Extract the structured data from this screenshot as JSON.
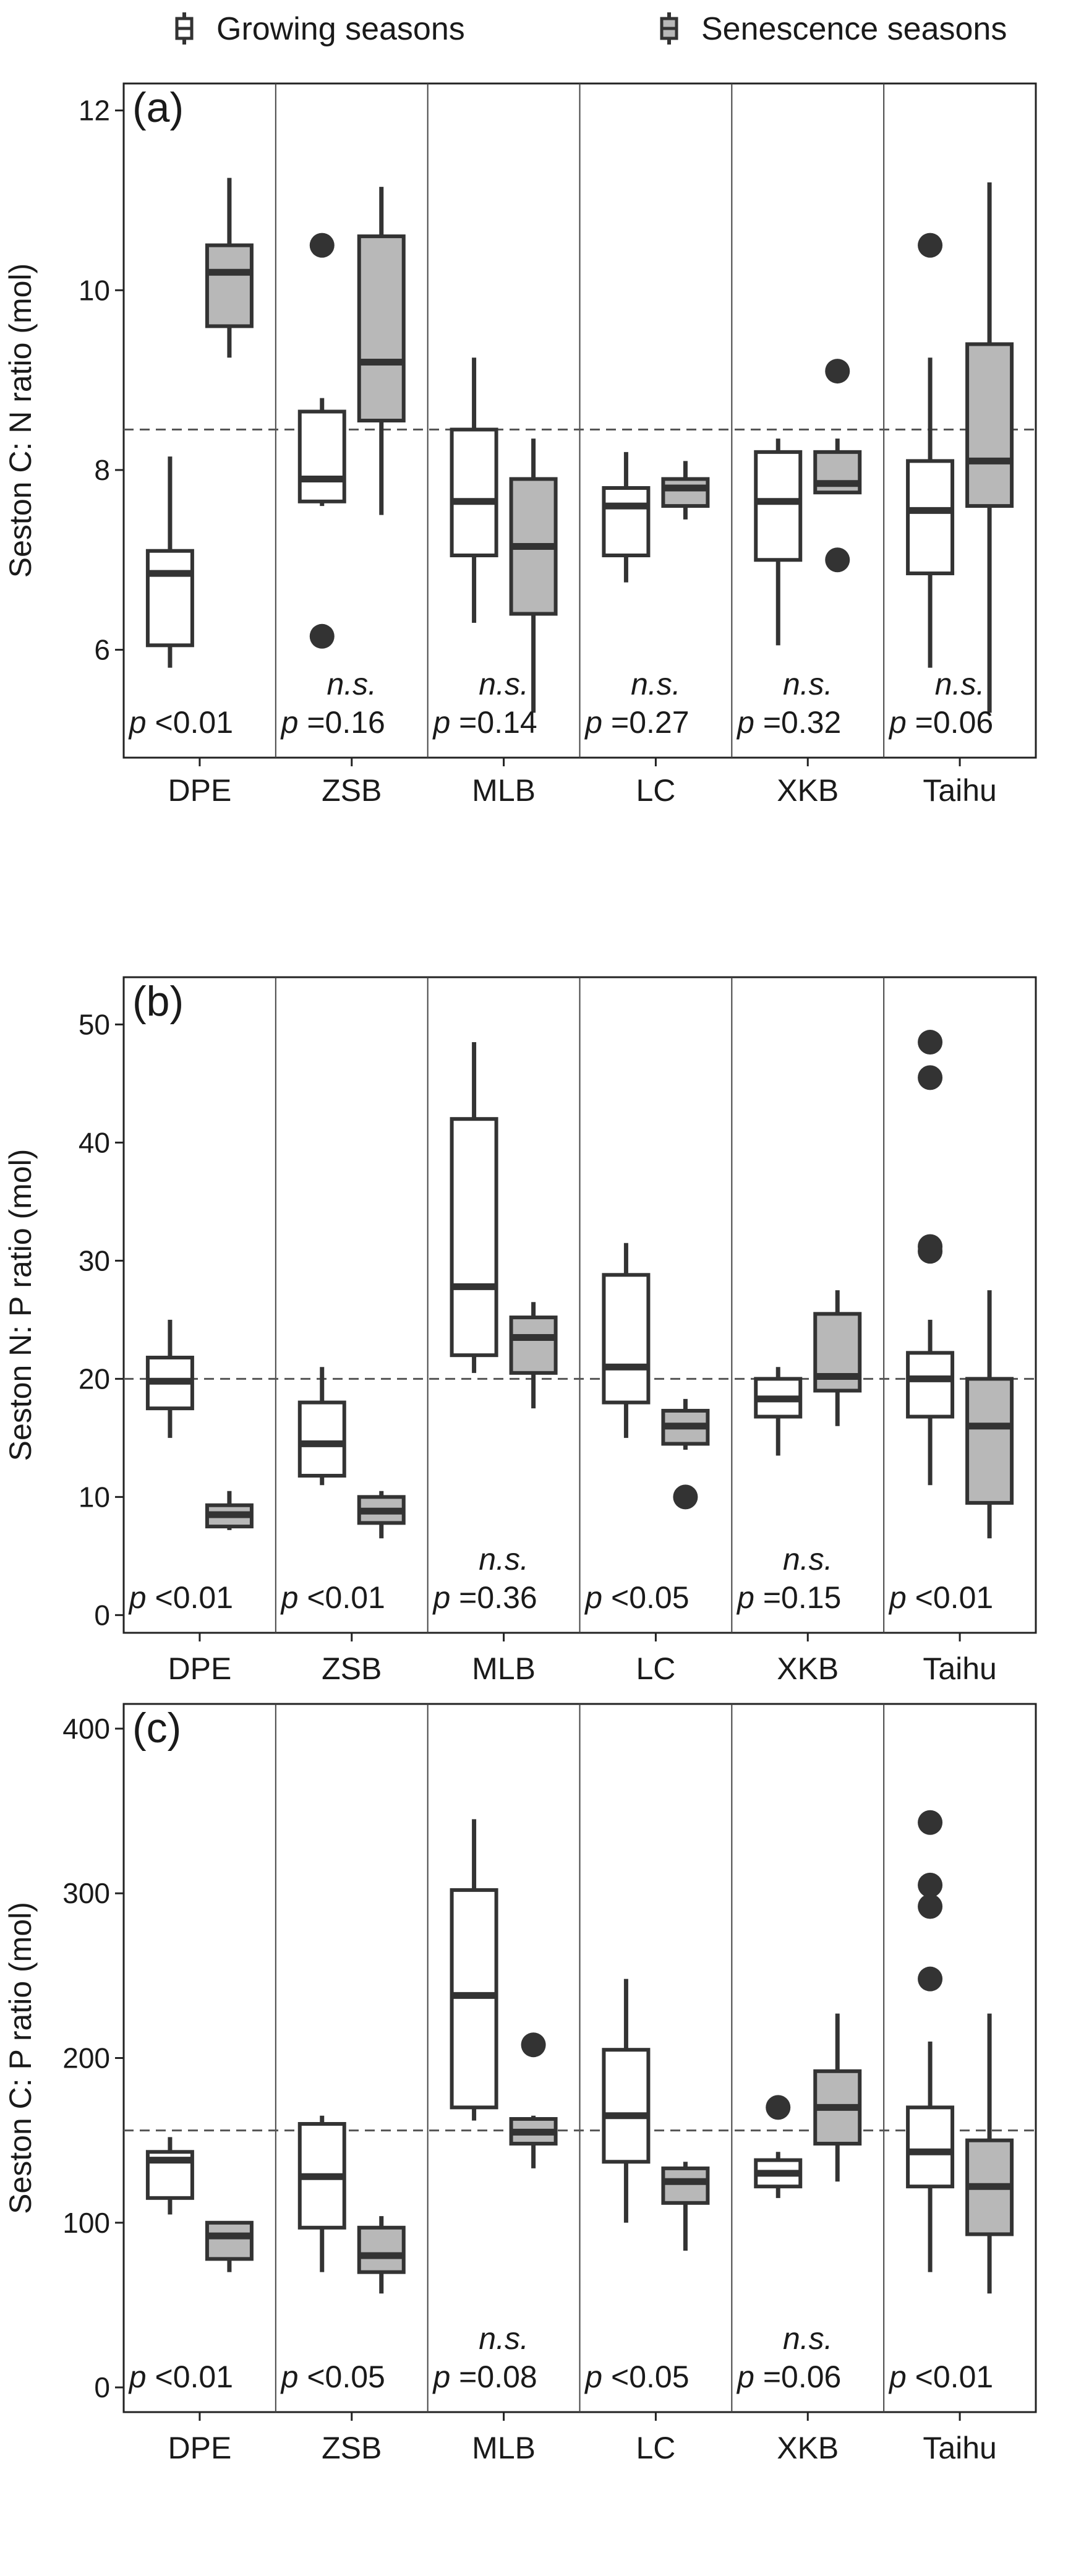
{
  "legend": {
    "growing": "Growing seasons",
    "senescence": "Senescence seasons"
  },
  "colors": {
    "growing_fill": "#ffffff",
    "senescence_fill": "#b8b8b8",
    "stroke": "#333333",
    "reference_line": "#555555"
  },
  "chart_data": [
    {
      "type": "boxplot",
      "panel": "(a)",
      "ylabel": "Seston C: N ratio (mol)",
      "ylim": [
        4.8,
        12.3
      ],
      "yticks": [
        6,
        8,
        10,
        12
      ],
      "reference_line": 8.45,
      "categories": [
        "DPE",
        "ZSB",
        "MLB",
        "LC",
        "XKB",
        "Taihu"
      ],
      "series": [
        {
          "name": "Growing seasons",
          "boxes": [
            {
              "min": 5.8,
              "q1": 6.05,
              "median": 6.85,
              "q3": 7.1,
              "max": 8.15,
              "outliers": []
            },
            {
              "min": 7.6,
              "q1": 7.65,
              "median": 7.9,
              "q3": 8.65,
              "max": 8.8,
              "outliers": [
                10.5,
                6.15
              ]
            },
            {
              "min": 6.3,
              "q1": 7.05,
              "median": 7.65,
              "q3": 8.45,
              "max": 9.25,
              "outliers": []
            },
            {
              "min": 6.75,
              "q1": 7.05,
              "median": 7.6,
              "q3": 7.8,
              "max": 8.2,
              "outliers": []
            },
            {
              "min": 6.05,
              "q1": 7.0,
              "median": 7.65,
              "q3": 8.2,
              "max": 8.35,
              "outliers": []
            },
            {
              "min": 5.8,
              "q1": 6.85,
              "median": 7.55,
              "q3": 8.1,
              "max": 9.25,
              "outliers": [
                10.5
              ]
            }
          ]
        },
        {
          "name": "Senescence seasons",
          "boxes": [
            {
              "min": 9.25,
              "q1": 9.6,
              "median": 10.2,
              "q3": 10.5,
              "max": 11.25,
              "outliers": []
            },
            {
              "min": 7.5,
              "q1": 8.55,
              "median": 9.2,
              "q3": 10.6,
              "max": 11.15,
              "outliers": []
            },
            {
              "min": 5.3,
              "q1": 6.4,
              "median": 7.15,
              "q3": 7.9,
              "max": 8.35,
              "outliers": []
            },
            {
              "min": 7.45,
              "q1": 7.6,
              "median": 7.8,
              "q3": 7.9,
              "max": 8.1,
              "outliers": []
            },
            {
              "min": 7.75,
              "q1": 7.75,
              "median": 7.85,
              "q3": 8.2,
              "max": 8.35,
              "outliers": [
                9.1,
                7.0
              ]
            },
            {
              "min": 5.3,
              "q1": 7.6,
              "median": 8.1,
              "q3": 9.4,
              "max": 11.2,
              "outliers": []
            }
          ]
        }
      ],
      "stats": [
        {
          "ns": "",
          "p": "<0.01"
        },
        {
          "ns": "n.s.",
          "p": "=0.16"
        },
        {
          "ns": "n.s.",
          "p": "=0.14"
        },
        {
          "ns": "n.s.",
          "p": "=0.27"
        },
        {
          "ns": "n.s.",
          "p": "=0.32"
        },
        {
          "ns": "n.s.",
          "p": "=0.06"
        }
      ]
    },
    {
      "type": "boxplot",
      "panel": "(b)",
      "ylabel": "Seston N: P ratio (mol)",
      "ylim": [
        -1.5,
        54
      ],
      "yticks": [
        0,
        10,
        20,
        30,
        40,
        50
      ],
      "reference_line": 20,
      "categories": [
        "DPE",
        "ZSB",
        "MLB",
        "LC",
        "XKB",
        "Taihu"
      ],
      "series": [
        {
          "name": "Growing seasons",
          "boxes": [
            {
              "min": 15,
              "q1": 17.5,
              "median": 19.8,
              "q3": 21.8,
              "max": 25,
              "outliers": []
            },
            {
              "min": 11,
              "q1": 11.8,
              "median": 14.5,
              "q3": 18,
              "max": 21,
              "outliers": []
            },
            {
              "min": 20.5,
              "q1": 22,
              "median": 27.8,
              "q3": 42,
              "max": 48.5,
              "outliers": []
            },
            {
              "min": 15,
              "q1": 18,
              "median": 21,
              "q3": 28.8,
              "max": 31.5,
              "outliers": []
            },
            {
              "min": 13.5,
              "q1": 16.8,
              "median": 18.3,
              "q3": 20,
              "max": 21,
              "outliers": []
            },
            {
              "min": 11,
              "q1": 16.8,
              "median": 20,
              "q3": 22.2,
              "max": 25,
              "outliers": [
                48.5,
                45.5,
                31.2,
                30.8
              ]
            }
          ]
        },
        {
          "name": "Senescence seasons",
          "boxes": [
            {
              "min": 7.2,
              "q1": 7.5,
              "median": 8.5,
              "q3": 9.3,
              "max": 10.5,
              "outliers": []
            },
            {
              "min": 6.5,
              "q1": 7.8,
              "median": 8.8,
              "q3": 10,
              "max": 10.5,
              "outliers": []
            },
            {
              "min": 17.5,
              "q1": 20.5,
              "median": 23.5,
              "q3": 25.2,
              "max": 26.5,
              "outliers": []
            },
            {
              "min": 14,
              "q1": 14.5,
              "median": 16,
              "q3": 17.3,
              "max": 18.3,
              "outliers": [
                10
              ]
            },
            {
              "min": 16,
              "q1": 19,
              "median": 20.2,
              "q3": 25.5,
              "max": 27.5,
              "outliers": []
            },
            {
              "min": 6.5,
              "q1": 9.5,
              "median": 16,
              "q3": 20,
              "max": 27.5,
              "outliers": []
            }
          ]
        }
      ],
      "stats": [
        {
          "ns": "",
          "p": "<0.01"
        },
        {
          "ns": "",
          "p": "<0.01"
        },
        {
          "ns": "n.s.",
          "p": "=0.36"
        },
        {
          "ns": "",
          "p": "<0.05"
        },
        {
          "ns": "n.s.",
          "p": "=0.15"
        },
        {
          "ns": "",
          "p": "<0.01"
        }
      ]
    },
    {
      "type": "boxplot",
      "panel": "(c)",
      "ylabel": "Seston C: P ratio (mol)",
      "ylim": [
        -15,
        415
      ],
      "yticks": [
        0,
        100,
        200,
        300,
        400
      ],
      "reference_line": 156,
      "categories": [
        "DPE",
        "ZSB",
        "MLB",
        "LC",
        "XKB",
        "Taihu"
      ],
      "series": [
        {
          "name": "Growing seasons",
          "boxes": [
            {
              "min": 105,
              "q1": 115,
              "median": 138,
              "q3": 143,
              "max": 152,
              "outliers": []
            },
            {
              "min": 70,
              "q1": 97,
              "median": 128,
              "q3": 160,
              "max": 165,
              "outliers": []
            },
            {
              "min": 162,
              "q1": 170,
              "median": 238,
              "q3": 302,
              "max": 345,
              "outliers": []
            },
            {
              "min": 100,
              "q1": 137,
              "median": 165,
              "q3": 205,
              "max": 248,
              "outliers": []
            },
            {
              "min": 115,
              "q1": 122,
              "median": 130,
              "q3": 138,
              "max": 143,
              "outliers": [
                170
              ]
            },
            {
              "min": 70,
              "q1": 122,
              "median": 143,
              "q3": 170,
              "max": 210,
              "outliers": [
                343,
                305,
                292,
                248
              ]
            }
          ]
        },
        {
          "name": "Senescence seasons",
          "boxes": [
            {
              "min": 70,
              "q1": 78,
              "median": 92,
              "q3": 100,
              "max": 100,
              "outliers": []
            },
            {
              "min": 57,
              "q1": 70,
              "median": 80,
              "q3": 97,
              "max": 104,
              "outliers": []
            },
            {
              "min": 133,
              "q1": 148,
              "median": 155,
              "q3": 163,
              "max": 165,
              "outliers": [
                208
              ]
            },
            {
              "min": 83,
              "q1": 112,
              "median": 125,
              "q3": 133,
              "max": 137,
              "outliers": []
            },
            {
              "min": 125,
              "q1": 148,
              "median": 170,
              "q3": 192,
              "max": 227,
              "outliers": []
            },
            {
              "min": 57,
              "q1": 93,
              "median": 122,
              "q3": 150,
              "max": 227,
              "outliers": []
            }
          ]
        }
      ],
      "stats": [
        {
          "ns": "",
          "p": "<0.01"
        },
        {
          "ns": "",
          "p": "<0.05"
        },
        {
          "ns": "n.s.",
          "p": "=0.08"
        },
        {
          "ns": "",
          "p": "<0.05"
        },
        {
          "ns": "n.s.",
          "p": "=0.06"
        },
        {
          "ns": "",
          "p": "<0.01"
        }
      ]
    }
  ]
}
